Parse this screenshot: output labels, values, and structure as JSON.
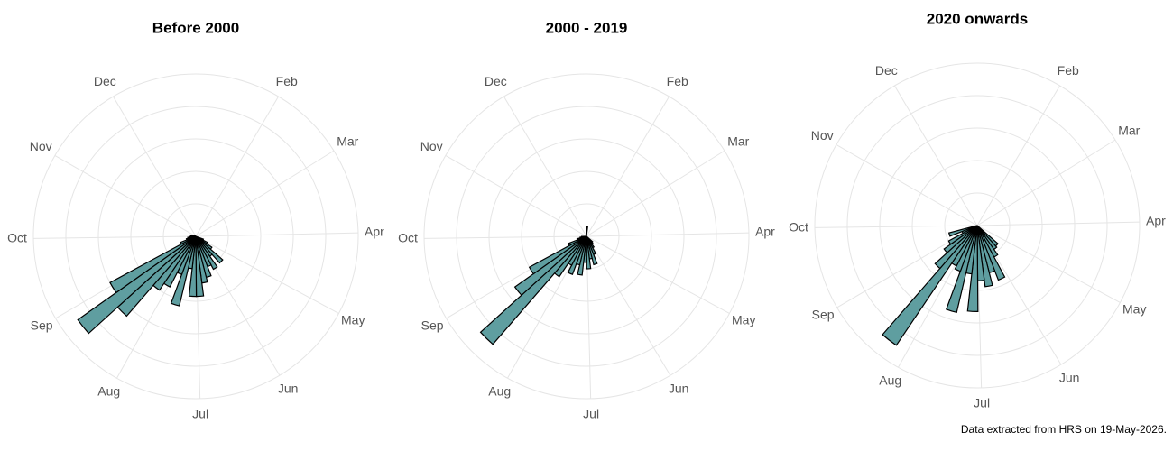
{
  "chart_data": [
    {
      "type": "polar_bar",
      "title": "Before 2000",
      "color": "#5f9ea0",
      "x": [
        115.5,
        122.5,
        129.5,
        136.5,
        143.5,
        150.5,
        157.5,
        164.5,
        171.5,
        178.5,
        185.5,
        192.5,
        199.5,
        206.5,
        213.5,
        220.5,
        227.5,
        234.5,
        241.5,
        248.5,
        255.5,
        262.5,
        269.5,
        276.5,
        283.5
      ],
      "values": [
        5,
        8,
        12,
        22,
        15,
        23,
        20,
        26,
        29,
        37,
        37,
        20,
        44,
        25,
        35,
        40,
        65,
        89,
        60,
        10,
        6,
        5,
        4,
        3,
        3
      ],
      "xlim": [
        0,
        365
      ],
      "xticks": [
        {
          "value": 31,
          "label": "Feb"
        },
        {
          "value": 59,
          "label": "Mar"
        },
        {
          "value": 90,
          "label": "Apr"
        },
        {
          "value": 120,
          "label": "May"
        },
        {
          "value": 151,
          "label": "Jun"
        },
        {
          "value": 181,
          "label": "Jul"
        },
        {
          "value": 212,
          "label": "Aug"
        },
        {
          "value": 243,
          "label": "Sep"
        },
        {
          "value": 273,
          "label": "Oct"
        },
        {
          "value": 304,
          "label": "Nov"
        },
        {
          "value": 334,
          "label": "Dec"
        }
      ],
      "ylim": [
        0,
        100
      ],
      "yticks": [
        20,
        40,
        60,
        80,
        100
      ],
      "grid": true
    },
    {
      "type": "polar_bar",
      "title": "2000 - 2019",
      "color": "#5f9ea0",
      "x": [
        3.5,
        136.5,
        143.5,
        150.5,
        157.5,
        164.5,
        171.5,
        178.5,
        185.5,
        192.5,
        199.5,
        206.5,
        213.5,
        220.5,
        227.5,
        234.5,
        241.5,
        248.5,
        255.5,
        262.5,
        269.5
      ],
      "values": [
        6,
        5,
        6,
        8,
        12,
        18,
        14,
        20,
        16,
        24,
        18,
        25,
        20,
        30,
        88,
        54,
        40,
        12,
        6,
        4,
        3
      ],
      "xlim": [
        0,
        365
      ],
      "xticks": [
        {
          "value": 31,
          "label": "Feb"
        },
        {
          "value": 59,
          "label": "Mar"
        },
        {
          "value": 90,
          "label": "Apr"
        },
        {
          "value": 120,
          "label": "May"
        },
        {
          "value": 151,
          "label": "Jun"
        },
        {
          "value": 181,
          "label": "Jul"
        },
        {
          "value": 212,
          "label": "Aug"
        },
        {
          "value": 243,
          "label": "Sep"
        },
        {
          "value": 273,
          "label": "Oct"
        },
        {
          "value": 304,
          "label": "Nov"
        },
        {
          "value": 334,
          "label": "Dec"
        }
      ],
      "ylim": [
        0,
        100
      ],
      "yticks": [
        20,
        40,
        60,
        80,
        100
      ],
      "grid": true
    },
    {
      "type": "polar_bar",
      "title": "2020 onwards",
      "color": "#5f9ea0",
      "x": [
        136.5,
        143.5,
        150.5,
        157.5,
        164.5,
        171.5,
        178.5,
        185.5,
        192.5,
        199.5,
        206.5,
        213.5,
        220.5,
        227.5,
        234.5,
        241.5,
        248.5,
        255.5
      ],
      "values": [
        17,
        18,
        22,
        36,
        30,
        38,
        34,
        53,
        30,
        55,
        30,
        28,
        89,
        35,
        25,
        20,
        10,
        18
      ],
      "xlim": [
        0,
        365
      ],
      "xticks": [
        {
          "value": 31,
          "label": "Feb"
        },
        {
          "value": 59,
          "label": "Mar"
        },
        {
          "value": 90,
          "label": "Apr"
        },
        {
          "value": 120,
          "label": "May"
        },
        {
          "value": 151,
          "label": "Jun"
        },
        {
          "value": 181,
          "label": "Jul"
        },
        {
          "value": 212,
          "label": "Aug"
        },
        {
          "value": 243,
          "label": "Sep"
        },
        {
          "value": 273,
          "label": "Oct"
        },
        {
          "value": 304,
          "label": "Nov"
        },
        {
          "value": 334,
          "label": "Dec"
        }
      ],
      "ylim": [
        0,
        100
      ],
      "yticks": [
        20,
        40,
        60,
        80,
        100
      ],
      "grid": true
    }
  ],
  "footnote": "Data extracted from HRS on 19-May-2026."
}
